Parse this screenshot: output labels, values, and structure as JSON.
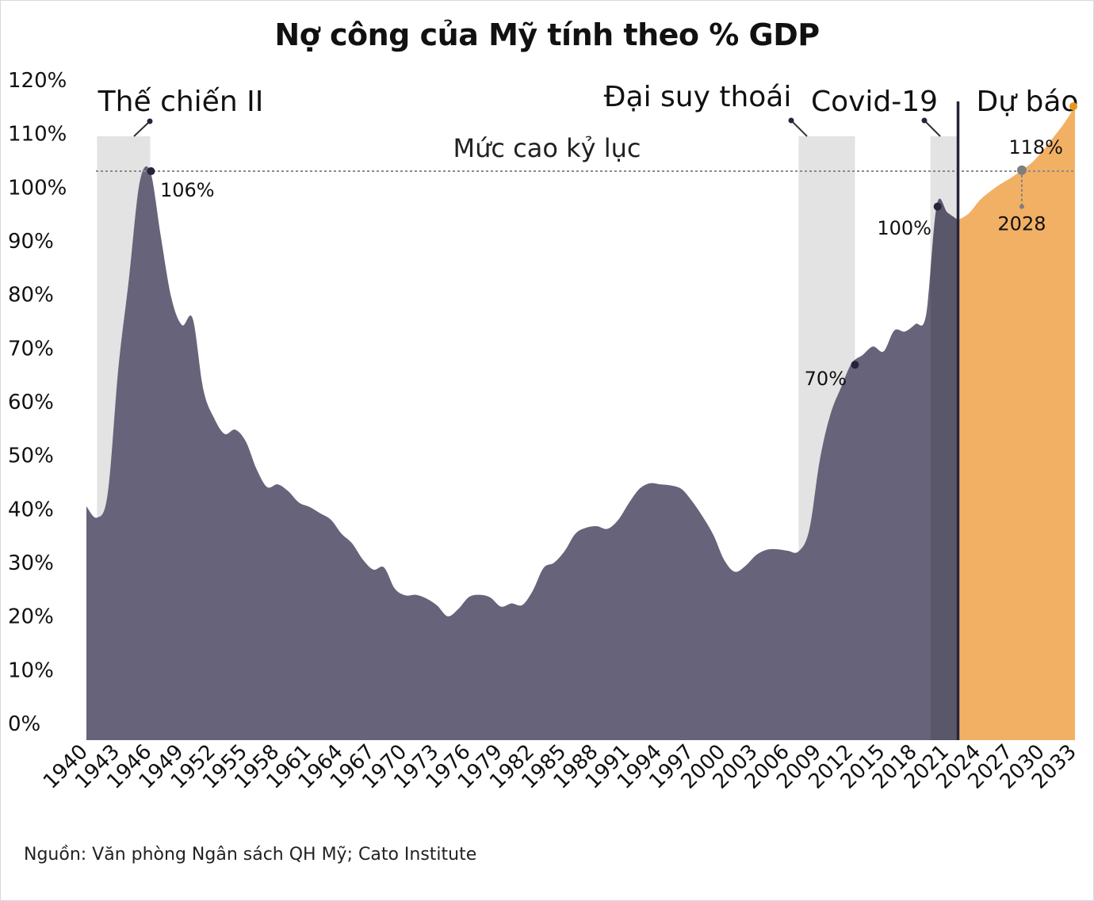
{
  "title": "Nợ công của Mỹ tính theo % GDP",
  "source": "Nguồn: Văn phòng Ngân sách QH Mỹ; Cato Institute",
  "colors": {
    "historical": "#67637a",
    "forecast": "#f2b064",
    "shade": "#e3e3e3",
    "divider": "#27233a",
    "dot": "#27233a",
    "forecast_end_dot": "#e8961a",
    "marker_2028": "#7f7f7f"
  },
  "chart_data": {
    "type": "area",
    "title": "Nợ công của Mỹ tính theo % GDP",
    "xlabel": "",
    "ylabel": "",
    "xlim": [
      1940,
      2033
    ],
    "ylim": [
      0,
      120
    ],
    "y_ticks": [
      0,
      10,
      20,
      30,
      40,
      50,
      60,
      70,
      80,
      90,
      100,
      110,
      120
    ],
    "y_tick_labels": [
      "0%",
      "10%",
      "20%",
      "30%",
      "40%",
      "50%",
      "60%",
      "70%",
      "80%",
      "90%",
      "100%",
      "110%",
      "120%"
    ],
    "x_ticks": [
      1940,
      1943,
      1946,
      1949,
      1952,
      1955,
      1958,
      1961,
      1964,
      1967,
      1970,
      1973,
      1976,
      1979,
      1982,
      1985,
      1988,
      1991,
      1994,
      1997,
      2000,
      2003,
      2006,
      2009,
      2012,
      2015,
      2018,
      2021,
      2024,
      2027,
      2030,
      2033
    ],
    "grid": false,
    "legend": "none",
    "series": [
      {
        "x": [
          1940,
          1941,
          1942,
          1943,
          1944,
          1945,
          1946,
          1947,
          1948,
          1949,
          1950,
          1951,
          1952,
          1953,
          1954,
          1955,
          1956,
          1957,
          1958,
          1959,
          1960,
          1961,
          1962,
          1963,
          1964,
          1965,
          1966,
          1967,
          1968,
          1969,
          1970,
          1971,
          1972,
          1973,
          1974,
          1975,
          1976,
          1977,
          1978,
          1979,
          1980,
          1981,
          1982,
          1983,
          1984,
          1985,
          1986,
          1987,
          1988,
          1989,
          1990,
          1991,
          1992,
          1993,
          1994,
          1995,
          1996,
          1997,
          1998,
          1999,
          2000,
          2001,
          2002,
          2003,
          2004,
          2005,
          2006,
          2007,
          2008,
          2009,
          2010,
          2011,
          2012,
          2013,
          2014,
          2015,
          2016,
          2017,
          2018,
          2019,
          2020,
          2021,
          2022
        ],
        "values": [
          43.6,
          41.5,
          45.9,
          69.2,
          86.0,
          103.9,
          106.1,
          93.9,
          82.4,
          77.4,
          78.6,
          65.4,
          60.1,
          57.1,
          57.9,
          55.7,
          50.6,
          47.2,
          47.7,
          46.4,
          44.3,
          43.5,
          42.3,
          41.1,
          38.5,
          36.7,
          33.7,
          31.8,
          32.2,
          28.3,
          27.0,
          27.1,
          26.4,
          25.1,
          23.1,
          24.5,
          26.7,
          27.1,
          26.6,
          24.9,
          25.5,
          25.2,
          27.9,
          32.1,
          33.1,
          35.3,
          38.5,
          39.6,
          39.9,
          39.4,
          41.0,
          44.1,
          46.8,
          47.9,
          47.7,
          47.5,
          46.8,
          44.5,
          41.6,
          38.2,
          33.6,
          31.4,
          32.5,
          34.5,
          35.5,
          35.6,
          35.3,
          35.2,
          39.2,
          52.3,
          60.8,
          65.8,
          70.3,
          71.8,
          73.4,
          72.5,
          76.4,
          76.2,
          77.6,
          79.4,
          99.8,
          98.4,
          97.0
        ]
      },
      {
        "x": [
          2022,
          2023,
          2024,
          2025,
          2026,
          2027,
          2028,
          2029,
          2030,
          2031,
          2032,
          2033
        ],
        "values": [
          97.0,
          98.2,
          100.6,
          102.3,
          103.7,
          104.9,
          106.3,
          107.8,
          110.0,
          112.5,
          115.1,
          118.2
        ]
      }
    ],
    "shaded_periods": [
      {
        "label": "Thế chiến II",
        "start": 1941,
        "end": 1946
      },
      {
        "label": "Đại suy thoái",
        "start": 2007,
        "end": 2012.3
      },
      {
        "label": "Covid-19",
        "start": 2019.4,
        "end": 2022
      }
    ],
    "forecast_start": 2022,
    "forecast_label": "Dự báo",
    "reference_line": {
      "value": 106.1,
      "label": "Mức cao kỷ lục"
    },
    "annotations": [
      {
        "label": "106%",
        "x": 1946,
        "y": 106.1
      },
      {
        "label": "70%",
        "x": 2012.3,
        "y": 70.3
      },
      {
        "label": "100%",
        "x": 2020,
        "y": 99.8
      },
      {
        "label": "118%",
        "x": 2033,
        "y": 118.2
      },
      {
        "label": "2028",
        "x": 2028,
        "y": 106.3
      }
    ]
  }
}
